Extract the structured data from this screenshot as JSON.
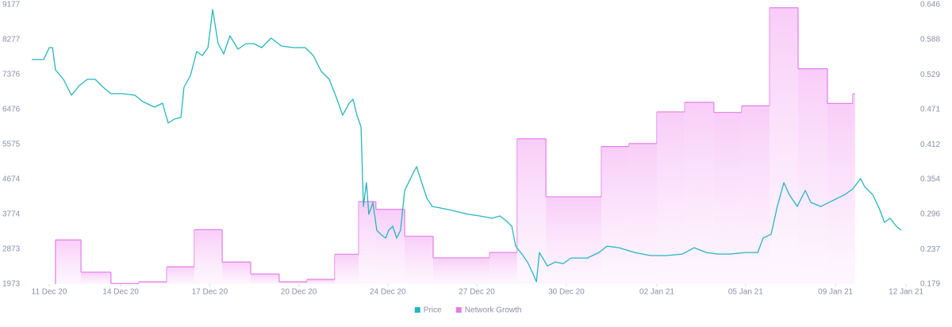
{
  "chart_data": {
    "type": "line",
    "xlim": [
      0,
      29.68
    ],
    "xticks": [
      {
        "value": 0.59,
        "label": "11 Dec 20"
      },
      {
        "value": 3.0,
        "label": "14 Dec 20"
      },
      {
        "value": 6.0,
        "label": "17 Dec 20"
      },
      {
        "value": 9.0,
        "label": "20 Dec 20"
      },
      {
        "value": 12.0,
        "label": "24 Dec 20"
      },
      {
        "value": 15.0,
        "label": "27 Dec 20"
      },
      {
        "value": 18.02,
        "label": "30 Dec 20"
      },
      {
        "value": 21.07,
        "label": "02 Jan 21"
      },
      {
        "value": 24.06,
        "label": "05 Jan 21"
      },
      {
        "value": 27.09,
        "label": "09 Jan 21"
      },
      {
        "value": 29.47,
        "label": "12 Jan 21"
      }
    ],
    "ylim": [
      1973,
      9177
    ],
    "yticks": [
      1973,
      2873,
      3774,
      4674,
      5575,
      6476,
      7376,
      8277,
      9177
    ],
    "y2lim": [
      0.179,
      0.646
    ],
    "y2ticks": [
      0.179,
      0.237,
      0.296,
      0.354,
      0.412,
      0.471,
      0.529,
      0.588,
      0.646
    ],
    "grid": false,
    "legend": "bottom",
    "series": [
      {
        "name": "Price",
        "color": "#26b5bf",
        "x": [
          0,
          0.4,
          0.59,
          0.7,
          0.8,
          1.07,
          1.34,
          1.6,
          1.87,
          2.14,
          2.41,
          2.67,
          3.07,
          3.48,
          3.74,
          4.14,
          4.41,
          4.6,
          4.81,
          5.03,
          5.13,
          5.35,
          5.56,
          5.75,
          5.94,
          6.1,
          6.28,
          6.47,
          6.68,
          6.95,
          7.22,
          7.49,
          7.75,
          8.07,
          8.42,
          8.82,
          9.22,
          9.49,
          9.76,
          10.03,
          10.29,
          10.48,
          10.7,
          10.83,
          10.96,
          11.1,
          11.18,
          11.28,
          11.36,
          11.5,
          11.63,
          11.76,
          11.93,
          12.03,
          12.17,
          12.3,
          12.43,
          12.57,
          12.7,
          12.83,
          12.97,
          13.1,
          13.32,
          13.5,
          13.77,
          14.17,
          14.71,
          15.11,
          15.51,
          15.78,
          15.99,
          16.18,
          16.31,
          16.52,
          16.71,
          16.9,
          17.01,
          17.11,
          17.38,
          17.65,
          17.91,
          18.18,
          18.72,
          19.12,
          19.39,
          19.79,
          20.32,
          20.86,
          21.39,
          21.93,
          22.33,
          22.73,
          23.13,
          23.53,
          24.06,
          24.47,
          24.65,
          24.92,
          25.13,
          25.35,
          25.53,
          25.8,
          26.07,
          26.26,
          26.6,
          26.87,
          27.14,
          27.41,
          27.67,
          27.94,
          28.07,
          28.34,
          28.56,
          28.74,
          28.93,
          29.14,
          29.3
        ],
        "values": [
          7765,
          7765,
          8072,
          8072,
          7498,
          7253,
          6843,
          7089,
          7253,
          7253,
          7048,
          6884,
          6884,
          6843,
          6680,
          6536,
          6639,
          6127,
          6229,
          6270,
          7048,
          7355,
          7969,
          7867,
          8072,
          9054,
          8174,
          7908,
          8379,
          8031,
          8174,
          8174,
          8072,
          8317,
          8113,
          8072,
          8072,
          7867,
          7457,
          7253,
          6741,
          6331,
          6639,
          6741,
          6331,
          6025,
          3977,
          4591,
          3773,
          4079,
          3363,
          3260,
          3159,
          3363,
          3466,
          3159,
          3363,
          4387,
          4591,
          4796,
          5001,
          4694,
          4182,
          3977,
          3937,
          3875,
          3773,
          3732,
          3671,
          3732,
          3609,
          3466,
          2954,
          2749,
          2544,
          2237,
          2033,
          2790,
          2442,
          2544,
          2504,
          2647,
          2647,
          2790,
          2954,
          2913,
          2790,
          2709,
          2709,
          2749,
          2913,
          2790,
          2749,
          2749,
          2790,
          2790,
          3159,
          3260,
          3977,
          4591,
          4284,
          3977,
          4387,
          4079,
          3977,
          4079,
          4182,
          4284,
          4427,
          4694,
          4489,
          4284,
          3937,
          3568,
          3671,
          3466,
          3363
        ]
      },
      {
        "name": "Network Growth",
        "color": "#e07ee8",
        "axis": "y2",
        "step": true,
        "x": [
          0.8,
          1.66,
          2.67,
          3.61,
          4.55,
          5.48,
          6.42,
          7.38,
          8.34,
          9.28,
          10.21,
          11.02,
          11.6,
          12.57,
          13.53,
          15.43,
          16.36,
          17.33,
          19.2,
          20.13,
          21.07,
          22.01,
          22.99,
          23.93,
          24.87,
          25.83,
          26.82,
          27.67
        ],
        "values": [
          0.253,
          0.199,
          0.18,
          0.183,
          0.208,
          0.27,
          0.216,
          0.196,
          0.183,
          0.187,
          0.229,
          0.317,
          0.304,
          0.259,
          0.223,
          0.232,
          0.422,
          0.325,
          0.409,
          0.414,
          0.467,
          0.483,
          0.466,
          0.477,
          0.641,
          0.539,
          0.481,
          0.497
        ]
      }
    ]
  }
}
